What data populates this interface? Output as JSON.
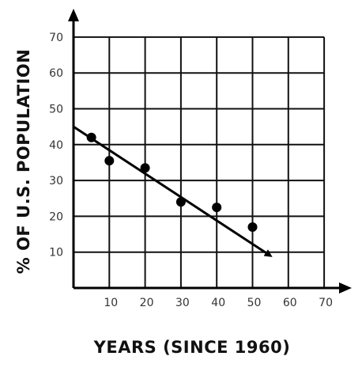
{
  "chart_data": {
    "type": "scatter",
    "title": "",
    "xlabel": "YEARS (SINCE 1960)",
    "ylabel": "% OF U.S. POPULATION",
    "xlim": [
      0,
      70
    ],
    "ylim": [
      0,
      70
    ],
    "grid": true,
    "x_ticks": [
      "10",
      "20",
      "30",
      "40",
      "50",
      "60",
      "70"
    ],
    "y_ticks": [
      "10",
      "20",
      "30",
      "40",
      "50",
      "60",
      "70"
    ],
    "points": [
      {
        "x": 5,
        "y": 42
      },
      {
        "x": 10,
        "y": 35.5
      },
      {
        "x": 20,
        "y": 33.5
      },
      {
        "x": 30,
        "y": 24
      },
      {
        "x": 40,
        "y": 22.5
      },
      {
        "x": 50,
        "y": 17
      }
    ],
    "trend_line": {
      "x1": 0,
      "y1": 45,
      "x2": 55,
      "y2": 9
    },
    "colors": {
      "grid": "#111111",
      "points": "#000000",
      "line": "#000000"
    }
  }
}
